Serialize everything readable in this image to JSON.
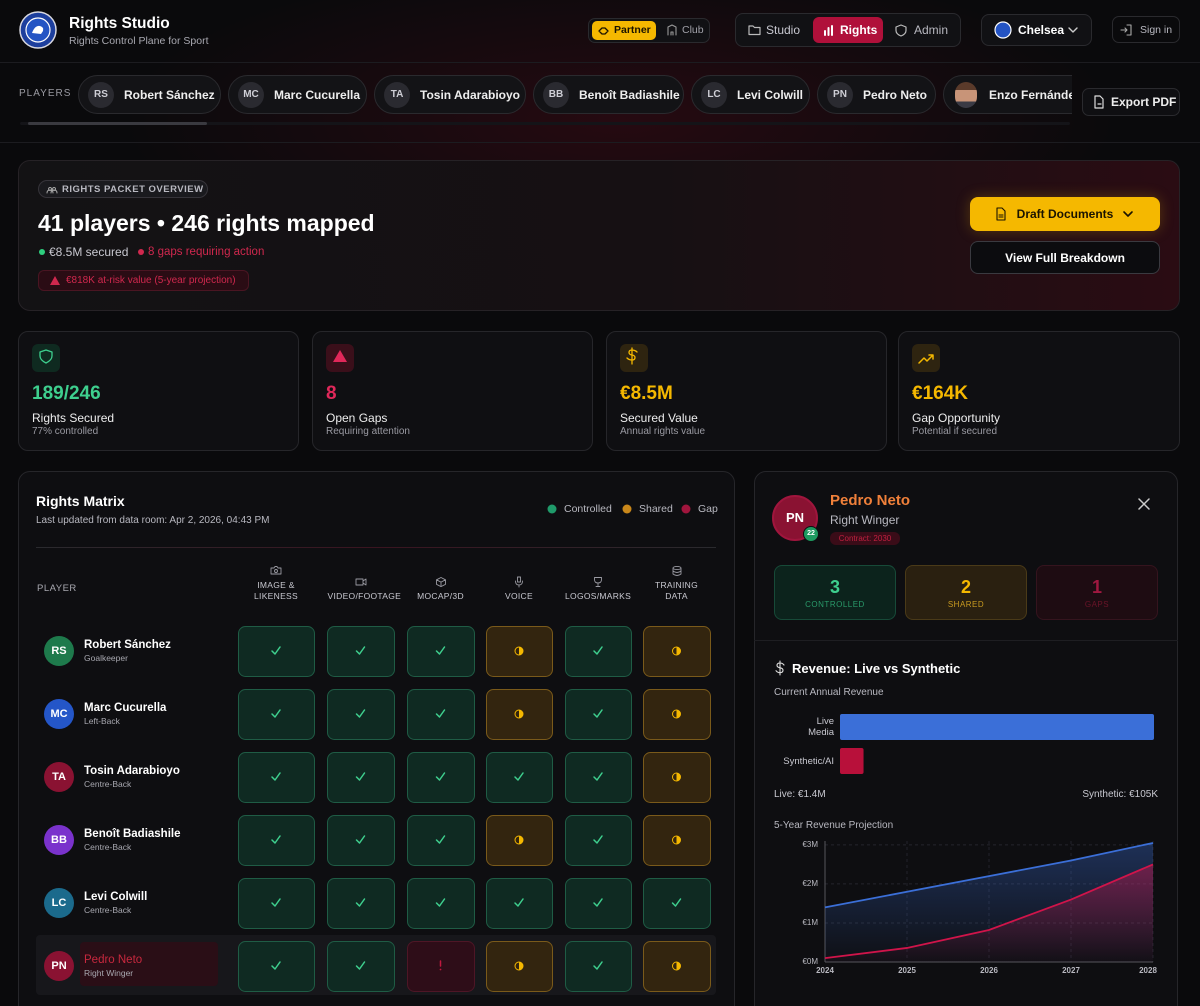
{
  "header": {
    "title": "Rights Studio",
    "subtitle": "Rights Control Plane for Sport",
    "modes": [
      "Partner",
      "Club"
    ],
    "nav": [
      "Studio",
      "Rights",
      "Admin"
    ],
    "club": "Chelsea",
    "sign_in": "Sign in"
  },
  "players_bar": {
    "label": "PLAYERS",
    "players": [
      {
        "initials": "RS",
        "name": "Robert Sánchez"
      },
      {
        "initials": "MC",
        "name": "Marc Cucurella"
      },
      {
        "initials": "TA",
        "name": "Tosin Adarabioyo"
      },
      {
        "initials": "BB",
        "name": "Benoît Badiashile"
      },
      {
        "initials": "LC",
        "name": "Levi Colwill"
      },
      {
        "initials": "PN",
        "name": "Pedro Neto"
      },
      {
        "name": "Enzo Fernández"
      }
    ],
    "export": "Export PDF"
  },
  "overview": {
    "badge": "RIGHTS PACKET OVERVIEW",
    "headline": "41 players • 246 rights mapped",
    "secured": "€8.5M secured",
    "gaps": "8 gaps requiring action",
    "risk": "€818K at-risk value (5-year projection)",
    "buttons": [
      "Draft Documents",
      "View Full Breakdown"
    ]
  },
  "stats": [
    {
      "value": "189/246",
      "label": "Rights Secured",
      "sub": "77% controlled",
      "color": "#3ecf8e"
    },
    {
      "value": "8",
      "label": "Open Gaps",
      "sub": "Requiring attention",
      "color": "#e0285a"
    },
    {
      "value": "€8.5M",
      "label": "Secured Value",
      "sub": "Annual rights value",
      "color": "#f5b800"
    },
    {
      "value": "€164K",
      "label": "Gap Opportunity",
      "sub": "Potential if secured",
      "color": "#f5b800"
    }
  ],
  "matrix": {
    "title": "Rights Matrix",
    "updated": "Last updated from data room: Apr 2, 2026, 04:43 PM",
    "legend": [
      {
        "label": "Controlled",
        "color": "#1f9a6a"
      },
      {
        "label": "Shared",
        "color": "#c9871a"
      },
      {
        "label": "Gap",
        "color": "#a0153d"
      }
    ],
    "player_header": "PLAYER",
    "columns": [
      "IMAGE & LIKENESS",
      "VIDEO/FOOTAGE",
      "MOCAP/3D",
      "VOICE",
      "LOGOS/MARKS",
      "TRAINING DATA"
    ],
    "rows": [
      {
        "initials": "RS",
        "name": "Robert Sánchez",
        "position": "Goalkeeper",
        "color": "#1e7a4c",
        "cells": [
          "controlled",
          "controlled",
          "controlled",
          "shared",
          "controlled",
          "shared"
        ]
      },
      {
        "initials": "MC",
        "name": "Marc Cucurella",
        "position": "Left-Back",
        "color": "#2456c8",
        "cells": [
          "controlled",
          "controlled",
          "controlled",
          "shared",
          "controlled",
          "shared"
        ]
      },
      {
        "initials": "TA",
        "name": "Tosin Adarabioyo",
        "position": "Centre-Back",
        "color": "#8a1232",
        "cells": [
          "controlled",
          "controlled",
          "controlled",
          "controlled",
          "controlled",
          "shared"
        ]
      },
      {
        "initials": "BB",
        "name": "Benoît Badiashile",
        "position": "Centre-Back",
        "color": "#7a32cc",
        "cells": [
          "controlled",
          "controlled",
          "controlled",
          "shared",
          "controlled",
          "shared"
        ]
      },
      {
        "initials": "LC",
        "name": "Levi Colwill",
        "position": "Centre-Back",
        "color": "#1b6a8c",
        "cells": [
          "controlled",
          "controlled",
          "controlled",
          "controlled",
          "controlled",
          "controlled"
        ]
      },
      {
        "initials": "PN",
        "name": "Pedro Neto",
        "position": "Right Winger",
        "color": "#8a1232",
        "cells": [
          "controlled",
          "controlled",
          "gap",
          "shared",
          "controlled",
          "shared"
        ]
      }
    ],
    "selected": 5
  },
  "detail": {
    "initials": "PN",
    "number": "22",
    "name": "Pedro Neto",
    "position": "Right Winger",
    "contract": "Contract: 2030",
    "counts": [
      {
        "value": 3,
        "label": "CONTROLLED"
      },
      {
        "value": 2,
        "label": "SHARED"
      },
      {
        "value": 1,
        "label": "GAPS"
      }
    ],
    "revenue_heading": "Revenue: Live vs Synthetic"
  },
  "chart_data": [
    {
      "type": "bar",
      "orientation": "horizontal",
      "title": "Current Annual Revenue",
      "categories": [
        "Live Media",
        "Synthetic/AI"
      ],
      "values": [
        1400000,
        105000
      ],
      "value_labels": [
        "Live: €1.4M",
        "Synthetic: €105K"
      ],
      "colors": [
        "#3b6fd8",
        "#b8103a"
      ],
      "xlim": [
        0,
        1400000
      ]
    },
    {
      "type": "line",
      "title": "5-Year Revenue Projection",
      "x": [
        2024,
        2025,
        2026,
        2027,
        2028
      ],
      "xlim": [
        2024,
        2028
      ],
      "series": [
        {
          "color": "#3b6fd8",
          "values": [
            1.4,
            1.8,
            2.2,
            2.6,
            3.05
          ]
        },
        {
          "color": "#d0144a",
          "values": [
            0.1,
            0.36,
            0.82,
            1.6,
            2.5
          ]
        }
      ],
      "ylim": [
        0,
        3.1
      ],
      "yticks": [
        {
          "value": 0,
          "label": "€0M"
        },
        {
          "value": 1,
          "label": "€1M"
        },
        {
          "value": 2,
          "label": "€2M"
        },
        {
          "value": 3,
          "label": "€3M"
        }
      ],
      "grid": true
    }
  ]
}
